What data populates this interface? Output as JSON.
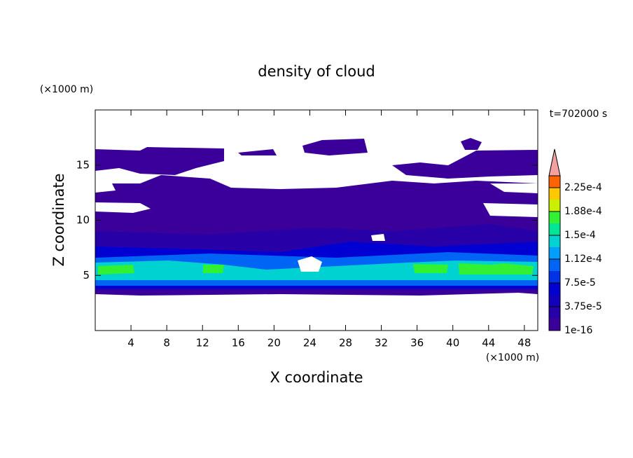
{
  "chart_data": {
    "type": "contour",
    "title": "density of cloud",
    "x_label": "X coordinate",
    "y_label": "Z coordinate",
    "x_unit": "(×1000 m)",
    "y_unit": "(×1000 m)",
    "time_label": "t=702000 s",
    "xlim": [
      0,
      49.5
    ],
    "ylim": [
      0,
      20
    ],
    "xticks": [
      4,
      8,
      12,
      16,
      20,
      24,
      28,
      32,
      36,
      40,
      44,
      48
    ],
    "yticks": [
      5,
      10,
      15
    ],
    "colorbar": {
      "colors": [
        "#3c009a",
        "#2800a8",
        "#1400bc",
        "#0000d2",
        "#0032e6",
        "#0064f5",
        "#00a0ff",
        "#00d2d2",
        "#00e696",
        "#32f032",
        "#c8f000",
        "#ffc800",
        "#ff6400"
      ],
      "extend_color": "#f4a0a0",
      "ticks": [
        {
          "value": 1e-16,
          "label": "1e-16"
        },
        {
          "value": 3.75e-05,
          "label": "3.75e-5"
        },
        {
          "value": 7.5e-05,
          "label": "7.5e-5"
        },
        {
          "value": 0.000112,
          "label": "1.12e-4"
        },
        {
          "value": 0.00015,
          "label": "1.5e-4"
        },
        {
          "value": 0.000188,
          "label": "1.88e-4"
        },
        {
          "value": 0.000225,
          "label": "2.25e-4"
        }
      ]
    }
  }
}
